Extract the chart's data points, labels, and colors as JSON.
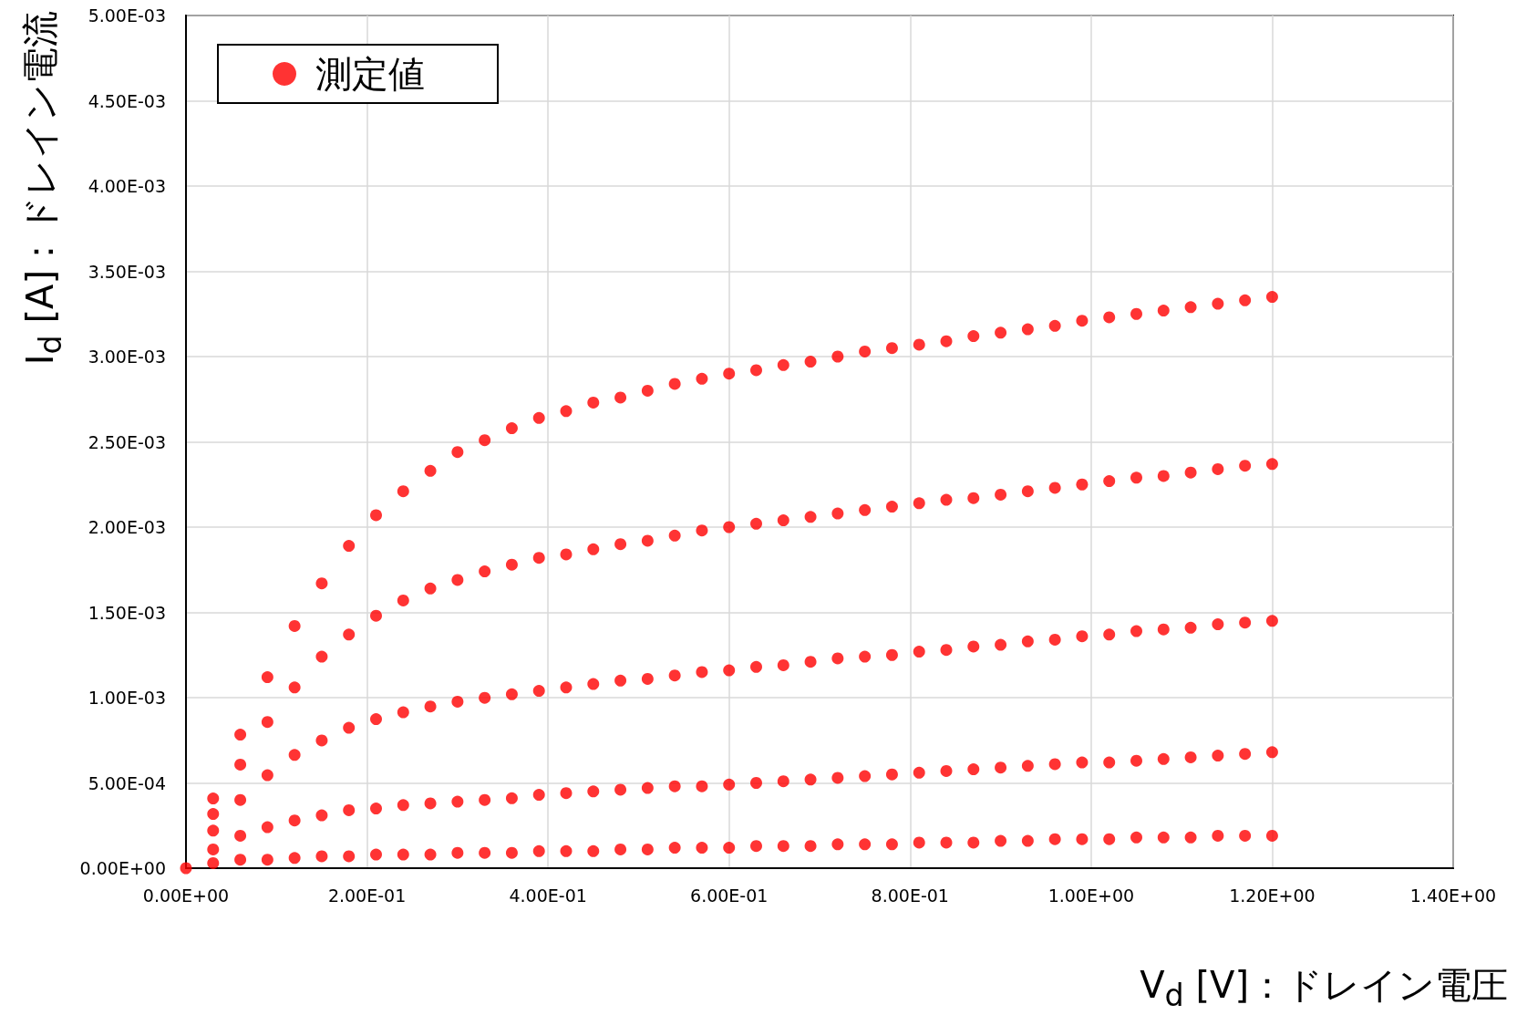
{
  "chart_data": {
    "type": "scatter",
    "xlabel": "V$_{d}$ [V]：ドレイン電圧",
    "ylabel": "I$_{d}$ [A]：ドレイン電流",
    "x": [
      0,
      0.03,
      0.06,
      0.09,
      0.12,
      0.15,
      0.18,
      0.21,
      0.24,
      0.27,
      0.3,
      0.33,
      0.36,
      0.39,
      0.42,
      0.45,
      0.48,
      0.51,
      0.54,
      0.57,
      0.6,
      0.63,
      0.66,
      0.69,
      0.72,
      0.75,
      0.78,
      0.81,
      0.84,
      0.87,
      0.9,
      0.93,
      0.96,
      0.99,
      1.02,
      1.05,
      1.08,
      1.11,
      1.14,
      1.17,
      1.2
    ],
    "series": [
      {
        "name": "測定値",
        "color": "#ff0000",
        "values": [
          0,
          0.000409,
          0.000783,
          0.00112,
          0.00142,
          0.00167,
          0.00189,
          0.00207,
          0.00221,
          0.00233,
          0.00244,
          0.00251,
          0.00258,
          0.00264,
          0.00268,
          0.00273,
          0.00276,
          0.0028,
          0.00284,
          0.00287,
          0.0029,
          0.00292,
          0.00295,
          0.00297,
          0.003,
          0.00303,
          0.00305,
          0.00307,
          0.00309,
          0.00312,
          0.00314,
          0.00316,
          0.00318,
          0.00321,
          0.00323,
          0.00325,
          0.00327,
          0.00329,
          0.00331,
          0.00333,
          0.00335
        ]
      },
      {
        "color": "#ff0000",
        "values": [
          null,
          0.000318,
          0.000607,
          0.000857,
          0.00106,
          0.00124,
          0.00137,
          0.00148,
          0.00157,
          0.00164,
          0.00169,
          0.00174,
          0.00178,
          0.00182,
          0.00184,
          0.00187,
          0.0019,
          0.00192,
          0.00195,
          0.00198,
          0.002,
          0.00202,
          0.00204,
          0.00206,
          0.00208,
          0.0021,
          0.00212,
          0.00214,
          0.00216,
          0.00217,
          0.00219,
          0.00221,
          0.00223,
          0.00225,
          0.00227,
          0.00229,
          0.0023,
          0.00232,
          0.00234,
          0.00236,
          0.00237
        ]
      },
      {
        "color": "#ff0000",
        "values": [
          null,
          0.00022,
          0.0004,
          0.000545,
          0.000664,
          0.000749,
          0.000823,
          0.000874,
          0.000914,
          0.000948,
          0.000976,
          0.000999,
          0.00102,
          0.00104,
          0.00106,
          0.00108,
          0.0011,
          0.00111,
          0.00113,
          0.00115,
          0.00116,
          0.00118,
          0.00119,
          0.00121,
          0.00123,
          0.00124,
          0.00125,
          0.00127,
          0.00128,
          0.0013,
          0.00131,
          0.00133,
          0.00134,
          0.00136,
          0.00137,
          0.00139,
          0.0014,
          0.00141,
          0.00143,
          0.00144,
          0.00145
        ]
      },
      {
        "color": "#ff0000",
        "values": [
          null,
          0.00011,
          0.00019,
          0.00024,
          0.00028,
          0.00031,
          0.00034,
          0.00035,
          0.00037,
          0.00038,
          0.00039,
          0.0004,
          0.00041,
          0.00043,
          0.00044,
          0.00045,
          0.00046,
          0.00047,
          0.00048,
          0.00048,
          0.00049,
          0.0005,
          0.00051,
          0.00052,
          0.00053,
          0.00054,
          0.00055,
          0.00056,
          0.00057,
          0.00058,
          0.00059,
          0.0006,
          0.00061,
          0.00062,
          0.00062,
          0.00063,
          0.00064,
          0.00065,
          0.00066,
          0.00067,
          0.00068
        ]
      },
      {
        "color": "#ff0000",
        "values": [
          null,
          3e-05,
          5e-05,
          5e-05,
          6e-05,
          7e-05,
          7e-05,
          8e-05,
          8e-05,
          8e-05,
          9e-05,
          9e-05,
          9e-05,
          0.0001,
          0.0001,
          0.0001,
          0.00011,
          0.00011,
          0.00012,
          0.00012,
          0.00012,
          0.00013,
          0.00013,
          0.00013,
          0.00014,
          0.00014,
          0.00014,
          0.00015,
          0.00015,
          0.00015,
          0.00016,
          0.00016,
          0.00017,
          0.00017,
          0.00017,
          0.00018,
          0.00018,
          0.00018,
          0.00019,
          0.00019,
          0.00019
        ]
      }
    ],
    "xlim": [
      0,
      1.4
    ],
    "xticks": [
      {
        "value": 0,
        "label": "0.00E+00"
      },
      {
        "value": 0.2,
        "label": "2.00E-01"
      },
      {
        "value": 0.4,
        "label": "4.00E-01"
      },
      {
        "value": 0.6,
        "label": "6.00E-01"
      },
      {
        "value": 0.8,
        "label": "8.00E-01"
      },
      {
        "value": 1,
        "label": "1.00E+00"
      },
      {
        "value": 1.2,
        "label": "1.20E+00"
      },
      {
        "value": 1.4,
        "label": "1.40E+00"
      }
    ],
    "ylim": [
      0,
      0.005
    ],
    "yticks": [
      {
        "value": 0,
        "label": "0.00E+00"
      },
      {
        "value": 0.0005,
        "label": "5.00E-04"
      },
      {
        "value": 0.001,
        "label": "1.00E-03"
      },
      {
        "value": 0.0015,
        "label": "1.50E-03"
      },
      {
        "value": 0.002,
        "label": "2.00E-03"
      },
      {
        "value": 0.0025,
        "label": "2.50E-03"
      },
      {
        "value": 0.003,
        "label": "3.00E-03"
      },
      {
        "value": 0.0035,
        "label": "3.50E-03"
      },
      {
        "value": 0.004,
        "label": "4.00E-03"
      },
      {
        "value": 0.0045,
        "label": "4.50E-03"
      },
      {
        "value": 0.005,
        "label": "5.00E-03"
      }
    ],
    "grid": true,
    "legend": "top left",
    "marker": "circle"
  }
}
